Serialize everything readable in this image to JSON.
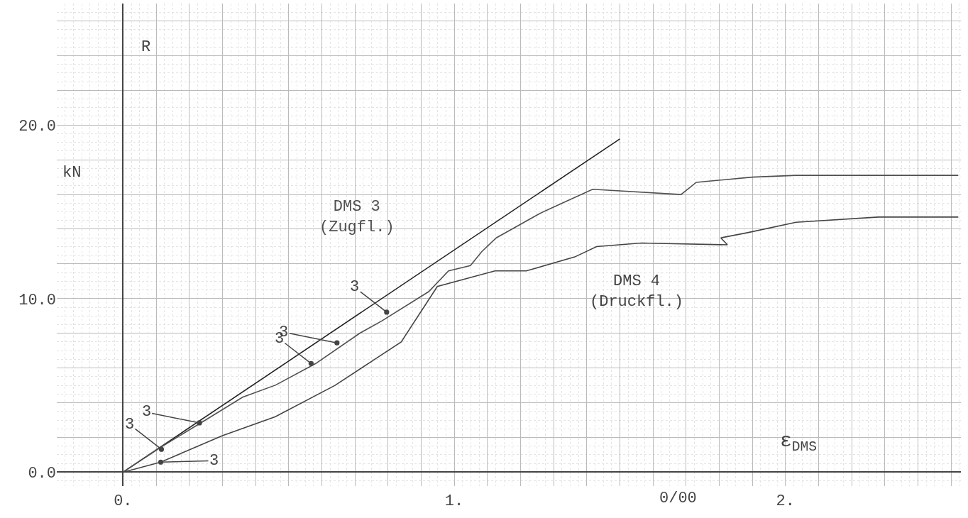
{
  "chart_data": {
    "type": "line",
    "xlabel": "ε$_{DMS}$",
    "ylabel": "R",
    "xlim": [
      -0.2,
      2.53
    ],
    "ylim": [
      -0.8,
      27
    ],
    "xticks": [
      {
        "value": 0,
        "label": "0."
      },
      {
        "value": 0.1,
        "label": null
      },
      {
        "value": 0.2,
        "label": null
      },
      {
        "value": 0.3,
        "label": null
      },
      {
        "value": 0.4,
        "label": null
      },
      {
        "value": 0.5,
        "label": null
      },
      {
        "value": 0.6,
        "label": null
      },
      {
        "value": 0.7,
        "label": null
      },
      {
        "value": 0.8,
        "label": null
      },
      {
        "value": 0.9,
        "label": null
      },
      {
        "value": 1,
        "label": "1."
      },
      {
        "value": 1.1,
        "label": null
      },
      {
        "value": 1.2,
        "label": null
      },
      {
        "value": 1.3,
        "label": null
      },
      {
        "value": 1.4,
        "label": null
      },
      {
        "value": 1.5,
        "label": null
      },
      {
        "value": 1.6,
        "label": null
      },
      {
        "value": 1.7,
        "label": null
      },
      {
        "value": 1.8,
        "label": null
      },
      {
        "value": 1.9,
        "label": null
      },
      {
        "value": 2,
        "label": "2."
      },
      {
        "value": 2.1,
        "label": null
      },
      {
        "value": 2.2,
        "label": null
      },
      {
        "value": 2.3,
        "label": null
      },
      {
        "value": 2.4,
        "label": null
      },
      {
        "value": 2.5,
        "label": null
      }
    ],
    "yticks": [
      {
        "value": 0,
        "label": "0.0"
      },
      {
        "value": 2,
        "label": null
      },
      {
        "value": 4,
        "label": null
      },
      {
        "value": 6,
        "label": null
      },
      {
        "value": 8,
        "label": null
      },
      {
        "value": 10,
        "label": "10.0"
      },
      {
        "value": 12,
        "label": null
      },
      {
        "value": 14,
        "label": null
      },
      {
        "value": 16,
        "label": null
      },
      {
        "value": 18,
        "label": null
      },
      {
        "value": 20,
        "label": "20.0"
      },
      {
        "value": 22,
        "label": null
      },
      {
        "value": 24,
        "label": null
      },
      {
        "value": 26,
        "label": null
      }
    ],
    "grid": true,
    "marker": "none",
    "line_style": "solid",
    "series": [
      {
        "color": "#222222",
        "x": [
          0,
          1.5
        ],
        "values": [
          0,
          19.2
        ]
      },
      {
        "name": "DMS 3 (Zugfl.)",
        "color": "#505050",
        "x": [
          0,
          0.114,
          0.235,
          0.361,
          0.461,
          0.582,
          0.716,
          0.782,
          0.923,
          0.983,
          1.049,
          1.083,
          1.127,
          1.258,
          1.338,
          1.418,
          1.685,
          1.731,
          1.9,
          2.032,
          2.522
        ],
        "values": [
          0,
          1.44,
          2.84,
          4.32,
          5.02,
          6.26,
          8.02,
          8.72,
          10.4,
          11.6,
          11.9,
          12.7,
          13.5,
          14.9,
          15.6,
          16.3,
          16.0,
          16.7,
          17.0,
          17.1,
          17.1
        ]
      },
      {
        "name": "DMS 4 (Druckfl.)",
        "color": "#444444",
        "x": [
          0,
          0.114,
          0.3,
          0.46,
          0.64,
          0.76,
          0.84,
          0.949,
          1.123,
          1.218,
          1.364,
          1.43,
          1.565,
          1.825,
          1.805,
          1.886,
          2.032,
          2.281,
          2.522
        ],
        "values": [
          0,
          0.58,
          2.1,
          3.2,
          5.0,
          6.5,
          7.5,
          10.7,
          11.6,
          11.6,
          12.4,
          13.0,
          13.2,
          13.1,
          13.5,
          13.8,
          14.4,
          14.7,
          14.7
        ]
      }
    ],
    "annotations": [
      "kN",
      "0/00",
      {
        "text": "3",
        "x": 0.114,
        "y": 0.58
      },
      {
        "text": "3",
        "x": 0.116,
        "y": 1.32
      },
      {
        "text": "3",
        "x": 0.231,
        "y": 2.84
      },
      {
        "text": "3",
        "x": 0.568,
        "y": 6.26
      },
      {
        "text": "3",
        "x": 0.646,
        "y": 7.45
      },
      {
        "text": "3",
        "x": 0.796,
        "y": 9.22
      }
    ]
  }
}
